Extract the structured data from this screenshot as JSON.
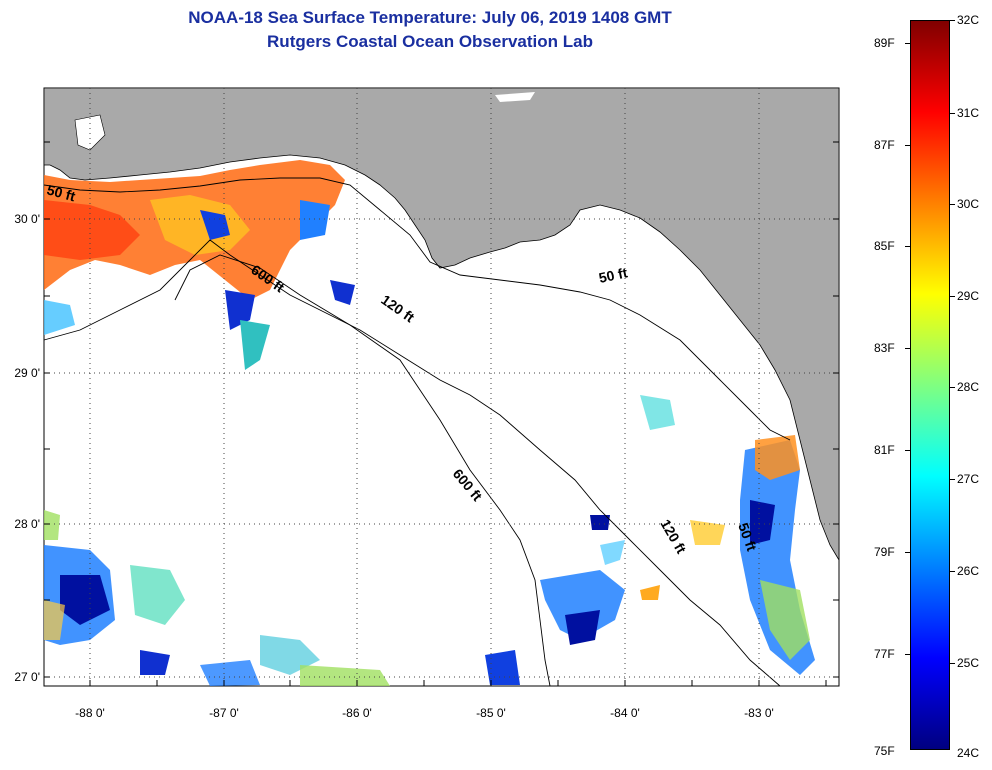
{
  "title": {
    "line1": "NOAA-18 Sea Surface Temperature:  July 06, 2019 1408 GMT",
    "line2": "Rutgers Coastal Ocean Observation Lab"
  },
  "map": {
    "land_color": "#a9a9a9",
    "ocean_color": "#ffffff",
    "lat_labels": [
      "30 0'",
      "29 0'",
      "28 0'",
      "27 0'"
    ],
    "lon_labels": [
      "-88 0'",
      "-87 0'",
      "-86 0'",
      "-85 0'",
      "-84 0'",
      "-83 0'"
    ],
    "contour_labels": [
      "50 ft",
      "600 ft",
      "120 ft",
      "50 ft",
      "600 ft",
      "120 ft",
      "50 ft"
    ]
  },
  "colorbar": {
    "fahrenheit_labels": [
      "89F",
      "87F",
      "85F",
      "83F",
      "81F",
      "79F",
      "77F",
      "75F"
    ],
    "celsius_labels": [
      "32C",
      "31C",
      "30C",
      "29C",
      "28C",
      "27C",
      "26C",
      "25C",
      "24C"
    ],
    "colors": [
      "#800000",
      "#ff0000",
      "#ff8000",
      "#ffff00",
      "#80ff80",
      "#00ffff",
      "#0080ff",
      "#0000ff",
      "#000080"
    ]
  }
}
